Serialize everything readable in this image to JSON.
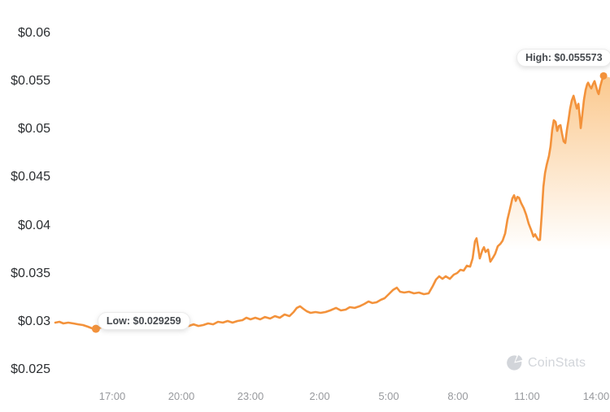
{
  "watermark": {
    "label": "CoinStats"
  },
  "colors": {
    "line": "#f3923b",
    "fill": "#f6921d",
    "y_label": "#2b2e31",
    "x_label": "#97999d",
    "tooltip_text": "#45494e",
    "tooltip_border": "#ececec",
    "watermark": "#d2d5da"
  },
  "chart_data": {
    "type": "area",
    "grid": "off",
    "legend": "none",
    "currency": "USD",
    "y_axis_range": [
      0.025,
      0.06
    ],
    "y_ticks": [
      {
        "value": 0.06,
        "label": "$0.06"
      },
      {
        "value": 0.055,
        "label": "$0.055"
      },
      {
        "value": 0.05,
        "label": "$0.05"
      },
      {
        "value": 0.045,
        "label": "$0.045"
      },
      {
        "value": 0.04,
        "label": "$0.04"
      },
      {
        "value": 0.035,
        "label": "$0.035"
      },
      {
        "value": 0.03,
        "label": "$0.03"
      },
      {
        "value": 0.025,
        "label": "$0.025"
      }
    ],
    "x_ticks": [
      {
        "t": 17,
        "label": "17:00"
      },
      {
        "t": 20,
        "label": "20:00"
      },
      {
        "t": 23,
        "label": "23:00"
      },
      {
        "t": 26,
        "label": "2:00"
      },
      {
        "t": 29,
        "label": "5:00"
      },
      {
        "t": 32,
        "label": "8:00"
      },
      {
        "t": 35,
        "label": "11:00"
      },
      {
        "t": 38,
        "label": "14:00"
      }
    ],
    "high": {
      "t": 38.32,
      "price": 0.055573,
      "label": "High: $0.055573"
    },
    "low": {
      "t": 16.29,
      "price": 0.029259,
      "label": "Low: $0.029259"
    },
    "points": [
      [
        14.53,
        0.0299
      ],
      [
        14.71,
        0.02999
      ],
      [
        14.88,
        0.02982
      ],
      [
        15.09,
        0.0299
      ],
      [
        15.31,
        0.02982
      ],
      [
        15.52,
        0.02973
      ],
      [
        15.73,
        0.02965
      ],
      [
        15.94,
        0.02948
      ],
      [
        16.12,
        0.02931
      ],
      [
        16.29,
        0.029259
      ],
      [
        16.51,
        0.02939
      ],
      [
        16.72,
        0.02956
      ],
      [
        16.93,
        0.02965
      ],
      [
        17.14,
        0.02973
      ],
      [
        17.42,
        0.02965
      ],
      [
        17.71,
        0.02973
      ],
      [
        17.95,
        0.02965
      ],
      [
        18.2,
        0.02973
      ],
      [
        18.48,
        0.02965
      ],
      [
        18.76,
        0.02973
      ],
      [
        19.05,
        0.02965
      ],
      [
        19.33,
        0.02956
      ],
      [
        19.61,
        0.02965
      ],
      [
        19.82,
        0.02965
      ],
      [
        20.11,
        0.02973
      ],
      [
        20.32,
        0.02956
      ],
      [
        20.53,
        0.02973
      ],
      [
        20.74,
        0.02956
      ],
      [
        20.95,
        0.02965
      ],
      [
        21.16,
        0.02982
      ],
      [
        21.38,
        0.02973
      ],
      [
        21.59,
        0.02999
      ],
      [
        21.8,
        0.0299
      ],
      [
        22.01,
        0.03007
      ],
      [
        22.22,
        0.0299
      ],
      [
        22.44,
        0.03007
      ],
      [
        22.65,
        0.03016
      ],
      [
        22.82,
        0.03041
      ],
      [
        23.0,
        0.03024
      ],
      [
        23.21,
        0.03041
      ],
      [
        23.42,
        0.03024
      ],
      [
        23.63,
        0.03049
      ],
      [
        23.85,
        0.03033
      ],
      [
        24.06,
        0.03058
      ],
      [
        24.27,
        0.03041
      ],
      [
        24.48,
        0.03075
      ],
      [
        24.69,
        0.03058
      ],
      [
        24.87,
        0.031
      ],
      [
        25.01,
        0.03143
      ],
      [
        25.15,
        0.0316
      ],
      [
        25.29,
        0.03134
      ],
      [
        25.44,
        0.03109
      ],
      [
        25.61,
        0.03092
      ],
      [
        25.82,
        0.031
      ],
      [
        26.04,
        0.03092
      ],
      [
        26.25,
        0.031
      ],
      [
        26.46,
        0.03117
      ],
      [
        26.71,
        0.03143
      ],
      [
        26.92,
        0.03117
      ],
      [
        27.13,
        0.03126
      ],
      [
        27.31,
        0.03151
      ],
      [
        27.52,
        0.03143
      ],
      [
        27.73,
        0.0316
      ],
      [
        27.94,
        0.03185
      ],
      [
        28.12,
        0.0321
      ],
      [
        28.29,
        0.03194
      ],
      [
        28.47,
        0.03202
      ],
      [
        28.65,
        0.03227
      ],
      [
        28.82,
        0.03244
      ],
      [
        29.0,
        0.03286
      ],
      [
        29.18,
        0.03329
      ],
      [
        29.35,
        0.03354
      ],
      [
        29.49,
        0.03312
      ],
      [
        29.67,
        0.03303
      ],
      [
        29.88,
        0.03312
      ],
      [
        30.09,
        0.03295
      ],
      [
        30.31,
        0.03303
      ],
      [
        30.52,
        0.03286
      ],
      [
        30.73,
        0.03295
      ],
      [
        30.91,
        0.03371
      ],
      [
        31.05,
        0.03438
      ],
      [
        31.19,
        0.03472
      ],
      [
        31.33,
        0.03446
      ],
      [
        31.47,
        0.03472
      ],
      [
        31.65,
        0.03446
      ],
      [
        31.82,
        0.03489
      ],
      [
        31.97,
        0.03506
      ],
      [
        32.11,
        0.0354
      ],
      [
        32.25,
        0.03531
      ],
      [
        32.39,
        0.03582
      ],
      [
        32.53,
        0.03573
      ],
      [
        32.64,
        0.03658
      ],
      [
        32.74,
        0.03835
      ],
      [
        32.81,
        0.03868
      ],
      [
        32.88,
        0.03767
      ],
      [
        32.95,
        0.03658
      ],
      [
        33.06,
        0.03742
      ],
      [
        33.13,
        0.03775
      ],
      [
        33.2,
        0.03725
      ],
      [
        33.31,
        0.0375
      ],
      [
        33.41,
        0.03624
      ],
      [
        33.52,
        0.03666
      ],
      [
        33.62,
        0.03708
      ],
      [
        33.73,
        0.03784
      ],
      [
        33.84,
        0.03809
      ],
      [
        33.94,
        0.03843
      ],
      [
        34.05,
        0.03919
      ],
      [
        34.15,
        0.04062
      ],
      [
        34.26,
        0.04172
      ],
      [
        34.36,
        0.04281
      ],
      [
        34.44,
        0.04315
      ],
      [
        34.51,
        0.04256
      ],
      [
        34.58,
        0.04298
      ],
      [
        34.65,
        0.0429
      ],
      [
        34.75,
        0.04231
      ],
      [
        34.86,
        0.0418
      ],
      [
        34.96,
        0.04113
      ],
      [
        35.07,
        0.0402
      ],
      [
        35.18,
        0.03953
      ],
      [
        35.28,
        0.03885
      ],
      [
        35.35,
        0.0391
      ],
      [
        35.42,
        0.03877
      ],
      [
        35.49,
        0.03851
      ],
      [
        35.56,
        0.03851
      ],
      [
        35.64,
        0.04121
      ],
      [
        35.71,
        0.04402
      ],
      [
        35.78,
        0.04546
      ],
      [
        35.85,
        0.0463
      ],
      [
        35.95,
        0.04723
      ],
      [
        36.02,
        0.04825
      ],
      [
        36.09,
        0.04994
      ],
      [
        36.16,
        0.05095
      ],
      [
        36.24,
        0.05078
      ],
      [
        36.31,
        0.04985
      ],
      [
        36.38,
        0.05036
      ],
      [
        36.45,
        0.05045
      ],
      [
        36.52,
        0.04952
      ],
      [
        36.59,
        0.04876
      ],
      [
        36.66,
        0.04859
      ],
      [
        36.73,
        0.04994
      ],
      [
        36.8,
        0.05099
      ],
      [
        36.87,
        0.05217
      ],
      [
        36.94,
        0.05301
      ],
      [
        37.02,
        0.05351
      ],
      [
        37.09,
        0.05284
      ],
      [
        37.16,
        0.05217
      ],
      [
        37.23,
        0.05267
      ],
      [
        37.3,
        0.05099
      ],
      [
        37.33,
        0.05014
      ],
      [
        37.4,
        0.05158
      ],
      [
        37.47,
        0.05309
      ],
      [
        37.54,
        0.0541
      ],
      [
        37.61,
        0.05469
      ],
      [
        37.65,
        0.05486
      ],
      [
        37.72,
        0.05452
      ],
      [
        37.79,
        0.05427
      ],
      [
        37.86,
        0.05469
      ],
      [
        37.93,
        0.05503
      ],
      [
        38.0,
        0.05444
      ],
      [
        38.07,
        0.05385
      ],
      [
        38.11,
        0.05368
      ],
      [
        38.18,
        0.05452
      ],
      [
        38.25,
        0.05512
      ],
      [
        38.32,
        0.055573
      ]
    ]
  }
}
